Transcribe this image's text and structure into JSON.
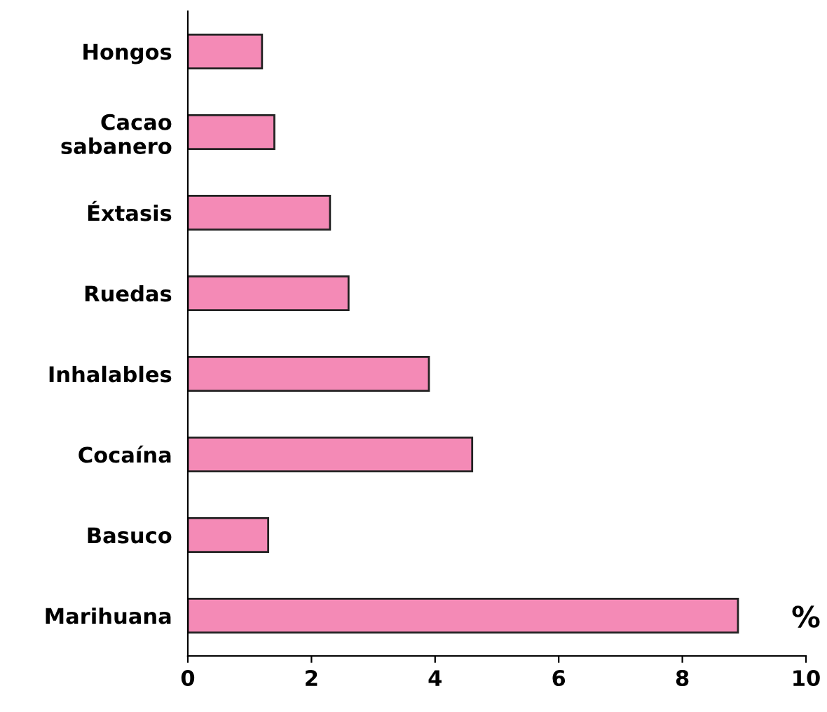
{
  "chart_data": {
    "type": "bar",
    "orientation": "horizontal",
    "xlabel": "%",
    "categories": [
      "Hongos",
      "Cacao\nsabanero",
      "Éxtasis",
      "Ruedas",
      "Inhalables",
      "Cocaína",
      "Basuco",
      "Marihuana"
    ],
    "values": [
      1.2,
      1.4,
      2.3,
      2.6,
      3.9,
      4.6,
      1.3,
      8.9
    ],
    "color": "#f48ab6",
    "xlim": [
      0,
      10
    ],
    "xticks": [
      0,
      2,
      4,
      6,
      8,
      10
    ],
    "grid": false,
    "legend": false
  }
}
